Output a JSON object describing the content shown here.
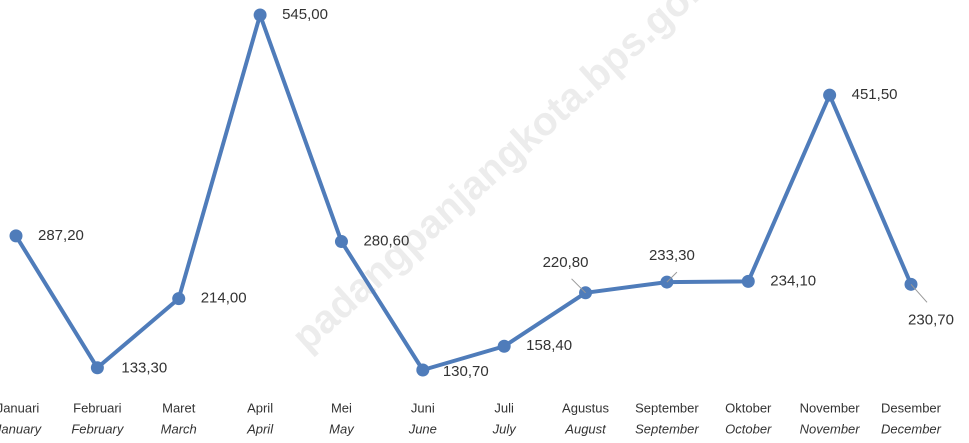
{
  "chart_data": {
    "type": "line",
    "watermark": "padangpanjangkota.bps.go.id",
    "categories": [
      [
        "Januari",
        "January"
      ],
      [
        "Februari",
        "February"
      ],
      [
        "Maret",
        "March"
      ],
      [
        "April",
        "April"
      ],
      [
        "Mei",
        "May"
      ],
      [
        "Juni",
        "June"
      ],
      [
        "Juli",
        "July"
      ],
      [
        "Agustus",
        "August"
      ],
      [
        "September",
        "September"
      ],
      [
        "Oktober",
        "October"
      ],
      [
        "November",
        "November"
      ],
      [
        "Desember",
        "December"
      ]
    ],
    "series": [
      {
        "name": null,
        "color": "#4f7cba",
        "values": [
          287.2,
          133.3,
          214.0,
          545.0,
          280.6,
          130.7,
          158.4,
          220.8,
          233.3,
          234.1,
          451.5,
          230.7
        ],
        "value_labels": [
          "287,20",
          "133,30",
          "214,00",
          "545,00",
          "280,60",
          "130,70",
          "158,40",
          "220,80",
          "233,30",
          "234,10",
          "451,50",
          "230,70"
        ]
      }
    ]
  }
}
